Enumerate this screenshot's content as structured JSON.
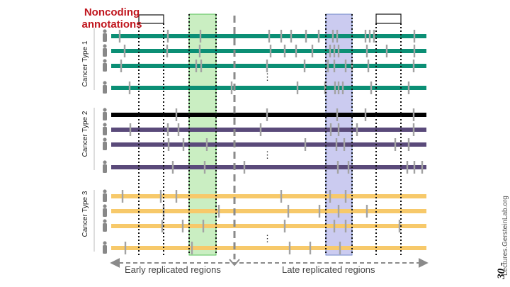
{
  "title": "Noncoding\nannotations",
  "groups": [
    {
      "label": "Cancer Type 1",
      "track_colors": [
        "#0b8f75",
        "#0b8f75",
        "#0b8f75",
        "#0b8f75"
      ]
    },
    {
      "label": "Cancer Type 2",
      "track_colors": [
        "#000000",
        "#5a4a7a",
        "#5a4a7a",
        "#5a4a7a"
      ]
    },
    {
      "label": "Cancer Type 3",
      "track_colors": [
        "#f7c96a",
        "#f7c96a",
        "#f7c96a",
        "#f7c96a"
      ]
    }
  ],
  "ellipsis": "⋮",
  "regions": {
    "early_label": "Early replicated regions",
    "late_label": "Late replicated regions",
    "early_color": "#9fe08f",
    "late_color": "#a9a8e6"
  },
  "colors": {
    "title": "#c0161e",
    "mutation_mark": "#a3a3a3",
    "divider": "#8a8a8a",
    "person_icon": "#888888"
  },
  "watermark": "Lectures.GersteinLab.org",
  "slide_number": "30 -"
}
